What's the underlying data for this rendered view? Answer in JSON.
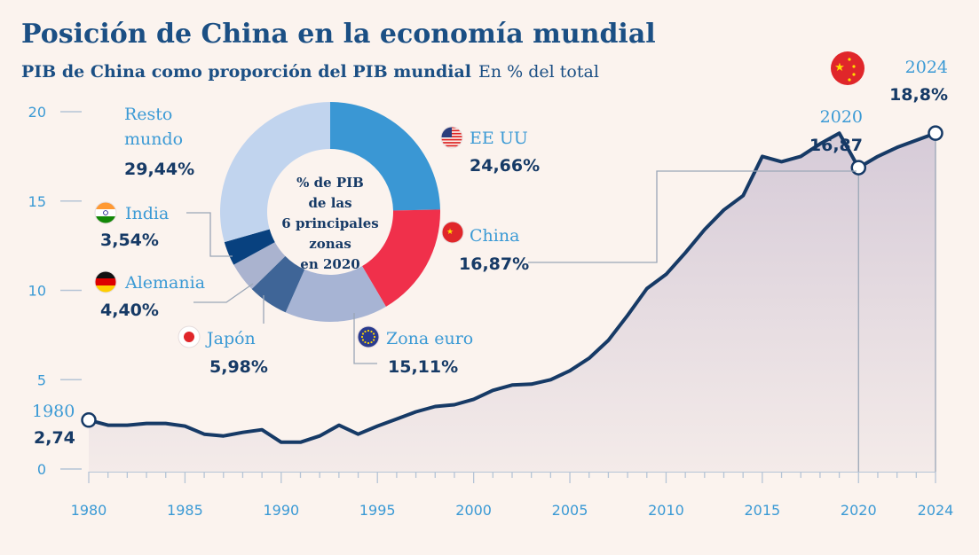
{
  "title": "Posición de China en la economía mundial",
  "subtitle_bold": "PIB de China como proporción del PIB mundial",
  "subtitle_regular": "En % del total",
  "chart_data": [
    {
      "type": "area",
      "series": [
        {
          "name": "China",
          "x": [
            1980,
            1981,
            1982,
            1983,
            1984,
            1985,
            1986,
            1987,
            1988,
            1989,
            1990,
            1991,
            1992,
            1993,
            1994,
            1995,
            1996,
            1997,
            1998,
            1999,
            2000,
            2001,
            2002,
            2003,
            2004,
            2005,
            2006,
            2007,
            2008,
            2009,
            2010,
            2011,
            2012,
            2013,
            2014,
            2015,
            2016,
            2017,
            2018,
            2019,
            2020,
            2021,
            2022,
            2023,
            2024
          ],
          "values": [
            2.74,
            2.45,
            2.45,
            2.55,
            2.55,
            2.4,
            1.95,
            1.85,
            2.05,
            2.2,
            1.5,
            1.5,
            1.85,
            2.45,
            1.95,
            2.4,
            2.8,
            3.2,
            3.5,
            3.6,
            3.9,
            4.4,
            4.7,
            4.75,
            5.0,
            5.5,
            6.2,
            7.2,
            8.6,
            10.1,
            10.9,
            12.1,
            13.4,
            14.5,
            15.3,
            17.5,
            17.2,
            17.5,
            18.2,
            18.8,
            16.87,
            17.5,
            18.0,
            18.4,
            18.8
          ]
        }
      ],
      "xlim": [
        1980,
        2024
      ],
      "ylim": [
        0,
        20
      ],
      "yticks": [
        0,
        5,
        10,
        15,
        20
      ],
      "xticks": [
        1980,
        1985,
        1990,
        1995,
        2000,
        2005,
        2010,
        2015,
        2020,
        2024
      ],
      "annotations": [
        {
          "x": 1980,
          "year_label": "1980",
          "value_label": "2,74"
        },
        {
          "x": 2020,
          "year_label": "2020",
          "value_label": "16,87"
        },
        {
          "x": 2024,
          "year_label": "2024",
          "value_label": "18,8%"
        }
      ],
      "colors": {
        "line": "#163a66",
        "area": "#dcd4dd",
        "axis": "#b5c4d6"
      }
    },
    {
      "type": "pie",
      "center_label": [
        "% de PIB",
        "de las",
        "6 principales",
        "zonas",
        "en 2020"
      ],
      "slices": [
        {
          "label": "EE UU",
          "value": 24.66,
          "value_label": "24,66%",
          "color": "#3a97d4",
          "icon": "us-flag-icon"
        },
        {
          "label": "China",
          "value": 16.87,
          "value_label": "16,87%",
          "color": "#f0304b",
          "icon": "china-flag-icon"
        },
        {
          "label": "Zona euro",
          "value": 15.11,
          "value_label": "15,11%",
          "color": "#a7b4d4",
          "icon": "eu-flag-icon"
        },
        {
          "label": "Japón",
          "value": 5.98,
          "value_label": "5,98%",
          "color": "#3f6597",
          "icon": "japan-flag-icon"
        },
        {
          "label": "Alemania",
          "value": 4.4,
          "value_label": "4,40%",
          "color": "#aab3cf",
          "icon": "germany-flag-icon"
        },
        {
          "label": "India",
          "value": 3.54,
          "value_label": "3,54%",
          "color": "#08417f",
          "icon": "india-flag-icon"
        },
        {
          "label_lines": [
            "Resto",
            "mundo"
          ],
          "value": 29.44,
          "value_label": "29,44%",
          "color": "#c1d4ee",
          "icon": ""
        }
      ]
    }
  ]
}
